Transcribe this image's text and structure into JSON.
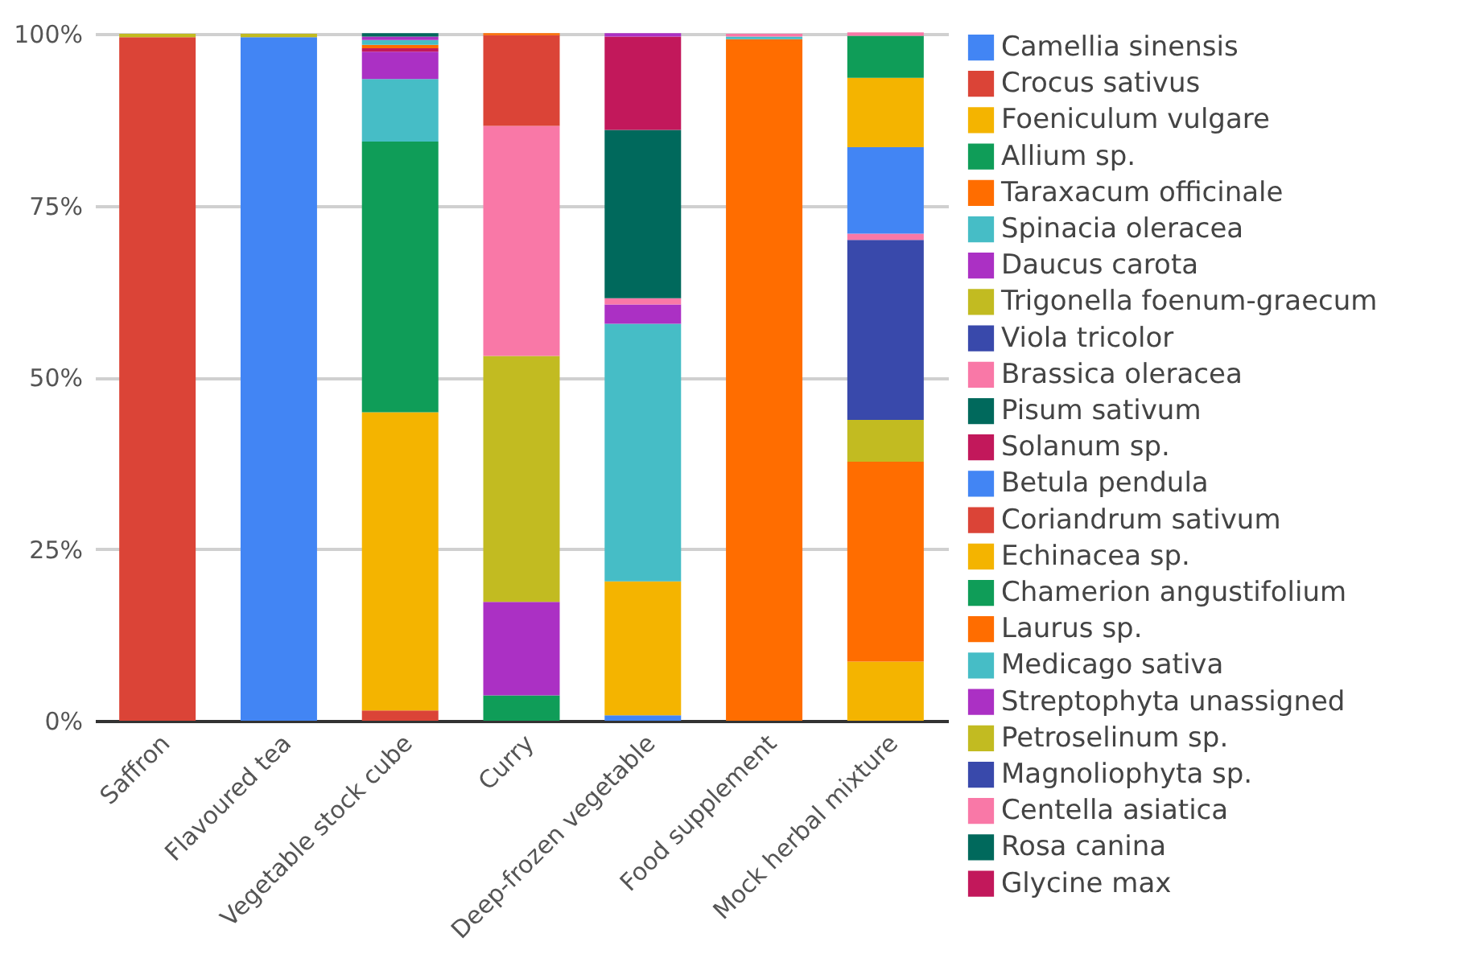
{
  "chart_data": {
    "type": "bar",
    "stacked": true,
    "categories": [
      "Saffron",
      "Flavoured tea",
      "Vegetable stock cube",
      "Curry",
      "Deep-frozen vegetable",
      "Food supplement",
      "Mock herbal mixture"
    ],
    "series": [
      {
        "name": "Camellia sinensis",
        "color": "#4285f4",
        "values": [
          null,
          99.5,
          null,
          null,
          0.8,
          null,
          null
        ]
      },
      {
        "name": "Crocus sativus",
        "color": "#db4437",
        "values": [
          99.5,
          null,
          1.5,
          null,
          null,
          null,
          null
        ]
      },
      {
        "name": "Foeniculum vulgare",
        "color": "#f4b400",
        "values": [
          null,
          null,
          43.4,
          null,
          19.5,
          null,
          8.6
        ]
      },
      {
        "name": "Allium sp.",
        "color": "#0f9d58",
        "values": [
          null,
          null,
          39.4,
          3.7,
          null,
          null,
          null
        ]
      },
      {
        "name": "Taraxacum officinale",
        "color": "#ff6d00",
        "values": [
          null,
          null,
          null,
          null,
          null,
          99.2,
          29.1
        ]
      },
      {
        "name": "Spinacia oleracea",
        "color": "#46bdc6",
        "values": [
          null,
          null,
          9.1,
          null,
          37.5,
          0.4,
          null
        ]
      },
      {
        "name": "Daucus carota",
        "color": "#ab30c4",
        "values": [
          null,
          null,
          4.0,
          13.6,
          2.8,
          null,
          null
        ]
      },
      {
        "name": "Trigonella foenum-graecum",
        "color": "#c2bb21",
        "values": [
          0.5,
          null,
          null,
          35.8,
          null,
          null,
          6.1
        ]
      },
      {
        "name": "Viola tricolor",
        "color": "#3949ab",
        "values": [
          null,
          null,
          null,
          null,
          null,
          null,
          26.2
        ]
      },
      {
        "name": "Brassica oleracea",
        "color": "#f978a7",
        "values": [
          null,
          null,
          null,
          33.5,
          0.9,
          0.4,
          0.9
        ]
      },
      {
        "name": "Pisum sativum",
        "color": "#00695c",
        "values": [
          null,
          null,
          null,
          null,
          24.5,
          null,
          null
        ]
      },
      {
        "name": "Solanum sp.",
        "color": "#c2185b",
        "values": [
          null,
          null,
          0.5,
          null,
          13.6,
          null,
          null
        ]
      },
      {
        "name": "Betula pendula",
        "color": "#4285f4",
        "values": [
          null,
          null,
          null,
          null,
          null,
          null,
          12.6
        ]
      },
      {
        "name": "Coriandrum sativum",
        "color": "#db4437",
        "values": [
          null,
          null,
          null,
          13.2,
          null,
          null,
          null
        ]
      },
      {
        "name": "Echinacea sp.",
        "color": "#f4b400",
        "values": [
          null,
          null,
          null,
          null,
          null,
          null,
          10.1
        ]
      },
      {
        "name": "Chamerion angustifolium",
        "color": "#0f9d58",
        "values": [
          null,
          null,
          null,
          null,
          null,
          null,
          6.1
        ]
      },
      {
        "name": "Laurus sp.",
        "color": "#ff6d00",
        "values": [
          null,
          null,
          0.5,
          0.3,
          null,
          null,
          null
        ]
      },
      {
        "name": "Medicago sativa",
        "color": "#46bdc6",
        "values": [
          null,
          null,
          0.7,
          null,
          null,
          null,
          null
        ]
      },
      {
        "name": "Streptophyta unassigned",
        "color": "#ab30c4",
        "values": [
          null,
          null,
          0.5,
          null,
          0.5,
          null,
          null
        ]
      },
      {
        "name": "Petroselinum sp.",
        "color": "#c2bb21",
        "values": [
          null,
          0.5,
          null,
          null,
          null,
          null,
          null
        ]
      },
      {
        "name": "Magnoliophyta sp.",
        "color": "#3949ab",
        "values": [
          null,
          null,
          null,
          null,
          null,
          null,
          null
        ]
      },
      {
        "name": "Centella asiatica",
        "color": "#f978a7",
        "values": [
          null,
          null,
          null,
          null,
          null,
          null,
          0.5
        ]
      },
      {
        "name": "Rosa canina",
        "color": "#00695c",
        "values": [
          null,
          null,
          0.5,
          null,
          null,
          null,
          null
        ]
      },
      {
        "name": "Glycine max",
        "color": "#c2185b",
        "values": [
          null,
          null,
          null,
          null,
          null,
          null,
          null
        ]
      }
    ],
    "ylim": [
      0,
      100
    ],
    "yticks": [
      {
        "value": 0,
        "label": "0%"
      },
      {
        "value": 25,
        "label": "25%"
      },
      {
        "value": 50,
        "label": "50%"
      },
      {
        "value": 75,
        "label": "75%"
      },
      {
        "value": 100,
        "label": "100%"
      }
    ],
    "grid": "y",
    "legend": "right"
  }
}
